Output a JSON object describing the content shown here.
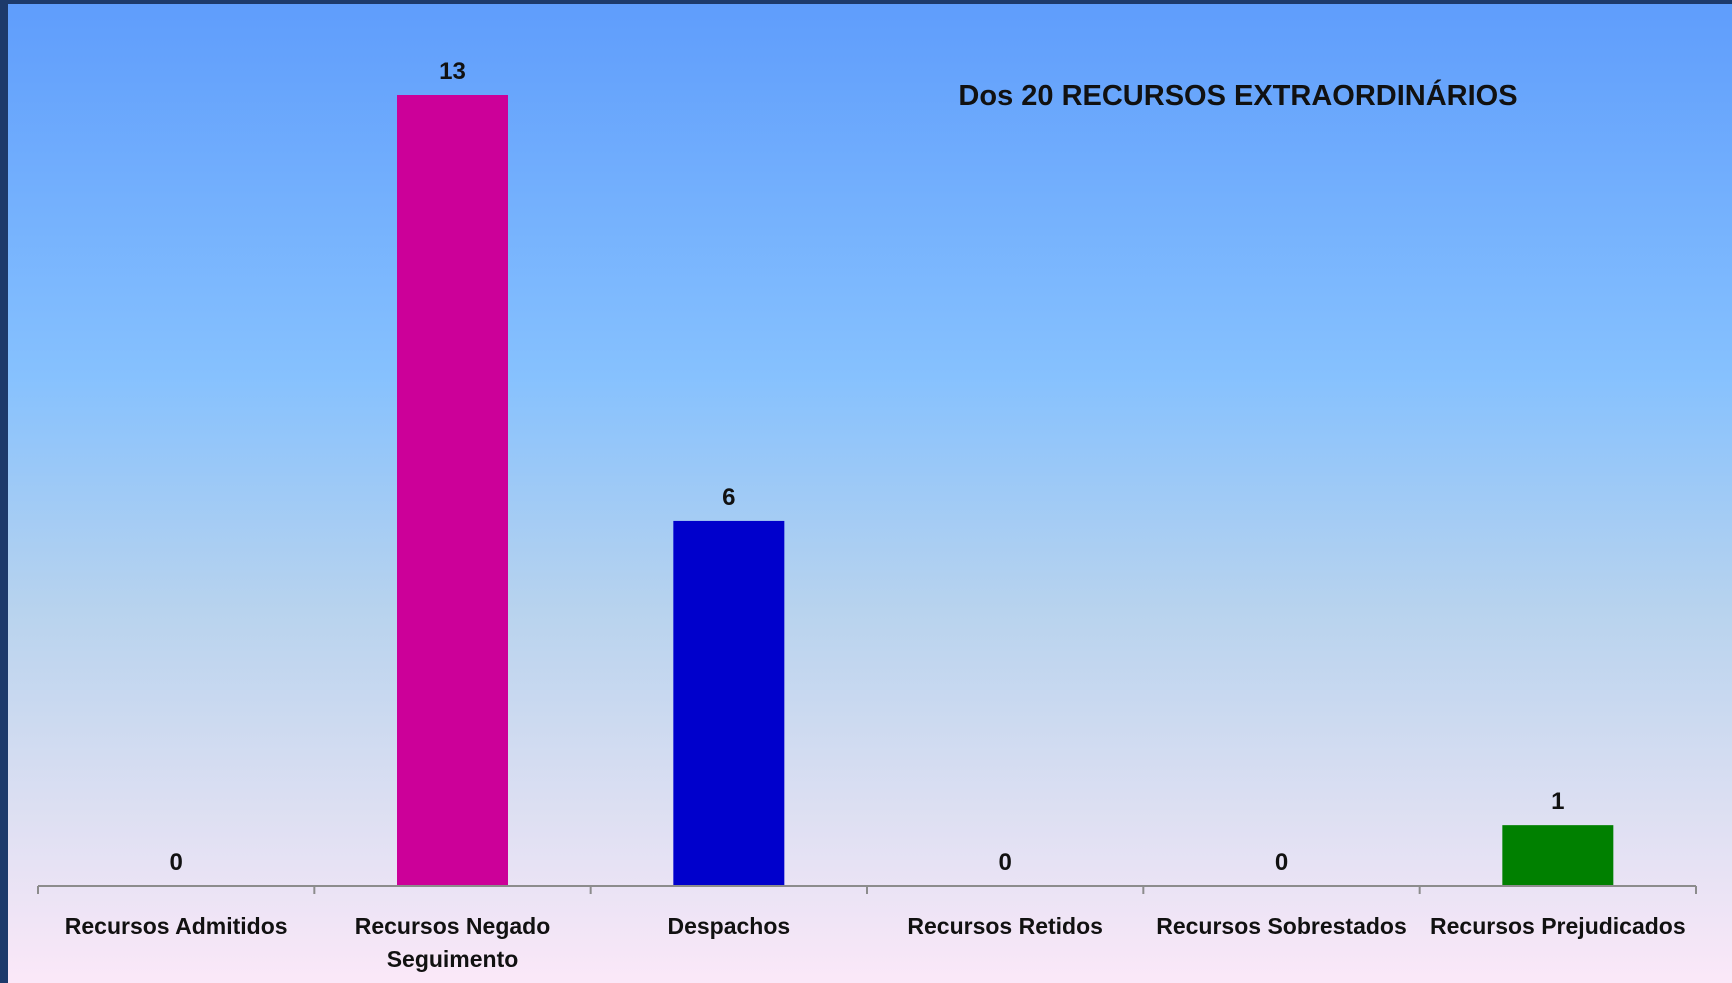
{
  "chart_data": {
    "type": "bar",
    "title": "Dos 20 RECURSOS EXTRAORDINÁRIOS",
    "categories": [
      [
        "Recursos Admitidos"
      ],
      [
        "Recursos Negado",
        "Seguimento"
      ],
      [
        "Despachos"
      ],
      [
        "Recursos Retidos"
      ],
      [
        "Recursos Sobrestados"
      ],
      [
        "Recursos Prejudicados"
      ]
    ],
    "values": [
      0,
      13,
      6,
      0,
      0,
      1
    ],
    "value_labels": [
      "0",
      "13",
      "6",
      "0",
      "0",
      "1"
    ],
    "colors": [
      "#4f81bd",
      "#cc0099",
      "#0000cc",
      "#4f81bd",
      "#4f81bd",
      "#008000"
    ],
    "ylim": [
      0,
      13
    ],
    "grid": false,
    "legend": "none",
    "xlabel": "",
    "ylabel": ""
  }
}
